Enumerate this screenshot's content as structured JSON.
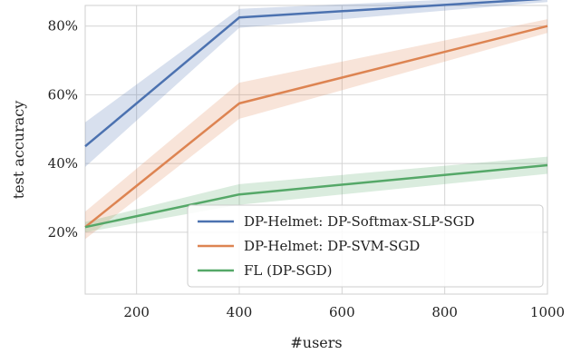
{
  "chart_data": {
    "type": "line",
    "xlabel": "#users",
    "ylabel": "test accuracy",
    "xlim": [
      100,
      1000
    ],
    "ylim": [
      2,
      86
    ],
    "xticks": [
      200,
      400,
      600,
      800,
      1000
    ],
    "yticks": [
      20,
      40,
      60,
      80
    ],
    "ytick_format": "percent",
    "grid": true,
    "legend_position": "lower-right",
    "x": [
      100,
      400,
      1000
    ],
    "series": [
      {
        "name": "DP-Helmet: DP-Softmax-SLP-SGD",
        "color": "#4c72b0",
        "values": [
          45,
          82.5,
          88
        ],
        "lower": [
          39,
          79.5,
          87
        ],
        "upper": [
          52,
          85,
          89
        ]
      },
      {
        "name": "DP-Helmet: DP-SVM-SGD",
        "color": "#dd8452",
        "values": [
          21.5,
          57.5,
          80
        ],
        "lower": [
          18,
          53,
          78
        ],
        "upper": [
          26,
          63.5,
          82
        ]
      },
      {
        "name": "FL (DP-SGD)",
        "color": "#55a868",
        "values": [
          21.5,
          31,
          39.5
        ],
        "lower": [
          20,
          28,
          37
        ],
        "upper": [
          23,
          34,
          42
        ]
      }
    ]
  }
}
